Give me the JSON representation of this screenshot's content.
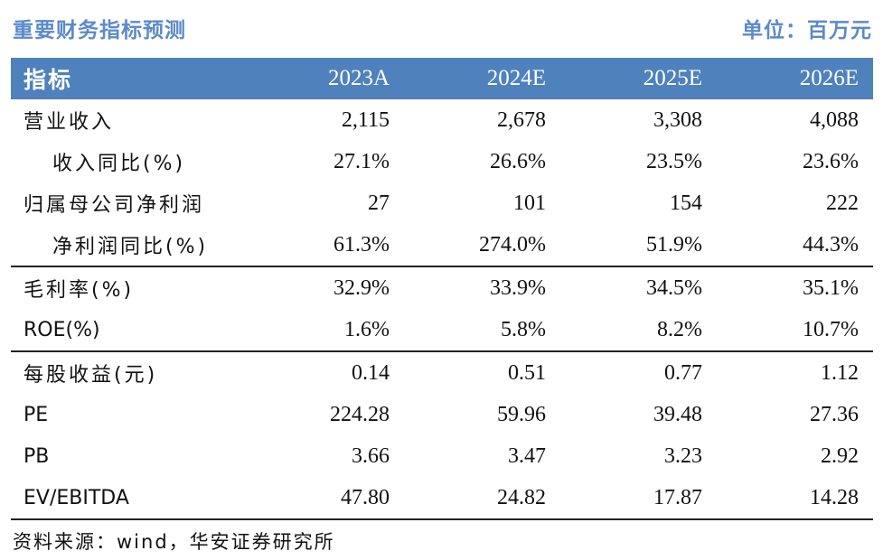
{
  "title": "重要财务指标预测",
  "unit": "单位：百万元",
  "table": {
    "header": {
      "label": "指标",
      "columns": [
        "2023A",
        "2024E",
        "2025E",
        "2026E"
      ]
    },
    "groups": [
      {
        "rows": [
          {
            "label": "营业收入",
            "values": [
              "2,115",
              "2,678",
              "3,308",
              "4,088"
            ]
          },
          {
            "label": "收入同比(%)",
            "values": [
              "27.1%",
              "26.6%",
              "23.5%",
              "23.6%"
            ]
          },
          {
            "label": "归属母公司净利润",
            "values": [
              "27",
              "101",
              "154",
              "222"
            ]
          },
          {
            "label": "净利润同比(%)",
            "values": [
              "61.3%",
              "274.0%",
              "51.9%",
              "44.3%"
            ]
          }
        ]
      },
      {
        "rows": [
          {
            "label": "毛利率(%)",
            "values": [
              "32.9%",
              "33.9%",
              "34.5%",
              "35.1%"
            ]
          },
          {
            "label": "ROE(%)",
            "values": [
              "1.6%",
              "5.8%",
              "8.2%",
              "10.7%"
            ]
          }
        ]
      },
      {
        "rows": [
          {
            "label": "每股收益(元)",
            "values": [
              "0.14",
              "0.51",
              "0.77",
              "1.12"
            ]
          },
          {
            "label": "PE",
            "values": [
              "224.28",
              "59.96",
              "39.48",
              "27.36"
            ]
          },
          {
            "label": "PB",
            "values": [
              "3.66",
              "3.47",
              "3.23",
              "2.92"
            ]
          },
          {
            "label": "EV/EBITDA",
            "values": [
              "47.80",
              "24.82",
              "17.87",
              "14.28"
            ]
          }
        ]
      }
    ]
  },
  "source": "资料来源：wind，华安证券研究所"
}
